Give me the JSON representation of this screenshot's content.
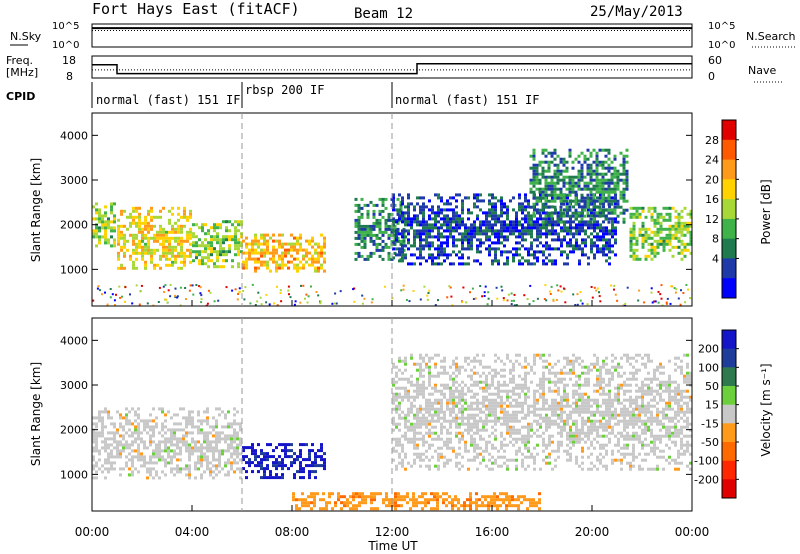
{
  "header": {
    "station": "Fort Hays East (fitACF)",
    "beam": "Beam 12",
    "date": "25/May/2013"
  },
  "strips": {
    "nsky_label": "N.Sky",
    "nsearch_label": "N.Search",
    "nsky_ticks": [
      "10^5",
      "10^0"
    ],
    "nsearch_ticks": [
      "10^5",
      "10^0"
    ],
    "freq_label_1": "Freq.",
    "freq_label_2": "[MHz]",
    "freq_ticks": [
      "18",
      "8"
    ],
    "nave_label": "Nave",
    "nave_ticks": [
      "60",
      "0"
    ],
    "cpid_label": "CPID"
  },
  "cpid_segments": [
    {
      "label": "normal (fast) 151 IF",
      "start_h": 0,
      "end_h": 6
    },
    {
      "label": "rbsp 200 IF",
      "start_h": 6,
      "end_h": 12
    },
    {
      "label": "normal (fast) 151 IF",
      "start_h": 12,
      "end_h": 24
    }
  ],
  "axes": {
    "xlabel": "Time UT",
    "x_ticks": [
      "00:00",
      "04:00",
      "08:00",
      "12:00",
      "16:00",
      "20:00",
      "00:00"
    ],
    "x_tick_hours": [
      0,
      4,
      8,
      12,
      16,
      20,
      24
    ],
    "ylabel": "Slant Range [km]",
    "y_ticks": [
      "4000",
      "3000",
      "2000",
      "1000"
    ],
    "y_tick_values": [
      4000,
      3000,
      2000,
      1000
    ],
    "ylim": [
      180,
      4500
    ]
  },
  "power_colorbar": {
    "label": "Power [dB]",
    "tick_labels": [
      "28",
      "24",
      "20",
      "16",
      "12",
      "8",
      "4"
    ],
    "colors": [
      "#e00000",
      "#ff5a00",
      "#ff9a1a",
      "#ffd200",
      "#a8d838",
      "#3fb24a",
      "#1f7a4f",
      "#1e3aa8",
      "#0000ff"
    ]
  },
  "velocity_colorbar": {
    "label": "Velocity [m s⁻¹]",
    "tick_labels": [
      "200",
      "100",
      "50",
      "15",
      "-15",
      "-50",
      "-100",
      "-200"
    ],
    "colors": [
      "#1414c8",
      "#1e3c9a",
      "#2e7a4e",
      "#6cd03c",
      "#c8c8c8",
      "#ff9a1a",
      "#ff6a00",
      "#ff2800",
      "#e00000"
    ]
  },
  "chart_data": [
    {
      "type": "line",
      "name": "strip-nsky-nsearch",
      "x_range_hours": [
        0,
        24
      ],
      "series": [
        {
          "name": "N.Sky",
          "level_log10": 4.1
        },
        {
          "name": "N.Search",
          "level_log10": 3.6
        }
      ]
    },
    {
      "type": "line",
      "name": "strip-freq-nave",
      "series": [
        {
          "name": "Freq.",
          "x_hours": [
            0,
            1,
            1,
            13,
            13,
            24
          ],
          "values": [
            14,
            14,
            10,
            10,
            14.5,
            14.5
          ]
        },
        {
          "name": "Nave",
          "x_hours": [
            0,
            24
          ],
          "values": [
            22,
            22
          ]
        }
      ]
    },
    {
      "type": "heatmap",
      "name": "power-panel",
      "x_range_hours": [
        0,
        24
      ],
      "ylim": [
        180,
        4500
      ],
      "value_unit": "dB",
      "bands": [
        {
          "x_start_h": 0.0,
          "x_end_h": 1.0,
          "y_start": 1500,
          "y_end": 2500,
          "value": 14
        },
        {
          "x_start_h": 1.0,
          "x_end_h": 4.0,
          "y_start": 1000,
          "y_end": 2400,
          "value": 18
        },
        {
          "x_start_h": 4.0,
          "x_end_h": 6.0,
          "y_start": 1000,
          "y_end": 2100,
          "value": 14
        },
        {
          "x_start_h": 6.0,
          "x_end_h": 9.3,
          "y_start": 900,
          "y_end": 1800,
          "value": 20
        },
        {
          "x_start_h": 10.5,
          "x_end_h": 12.5,
          "y_start": 1200,
          "y_end": 2600,
          "value": 8
        },
        {
          "x_start_h": 12.0,
          "x_end_h": 21.0,
          "y_start": 1100,
          "y_end": 2700,
          "value": 4
        },
        {
          "x_start_h": 17.5,
          "x_end_h": 21.5,
          "y_start": 2000,
          "y_end": 3700,
          "value": 8
        },
        {
          "x_start_h": 21.5,
          "x_end_h": 24.0,
          "y_start": 1200,
          "y_end": 2400,
          "value": 14
        }
      ]
    },
    {
      "type": "heatmap",
      "name": "velocity-panel",
      "x_range_hours": [
        0,
        24
      ],
      "ylim": [
        180,
        4500
      ],
      "value_unit": "m s-1",
      "bands": [
        {
          "x_start_h": 0.0,
          "x_end_h": 6.0,
          "y_start": 900,
          "y_end": 2500,
          "value": 0
        },
        {
          "x_start_h": 6.0,
          "x_end_h": 9.3,
          "y_start": 900,
          "y_end": 1700,
          "value": 200
        },
        {
          "x_start_h": 12.0,
          "x_end_h": 24.0,
          "y_start": 1100,
          "y_end": 3700,
          "value": 0
        },
        {
          "x_start_h": 8.0,
          "x_end_h": 18.0,
          "y_start": 180,
          "y_end": 600,
          "value": -50
        }
      ]
    }
  ]
}
